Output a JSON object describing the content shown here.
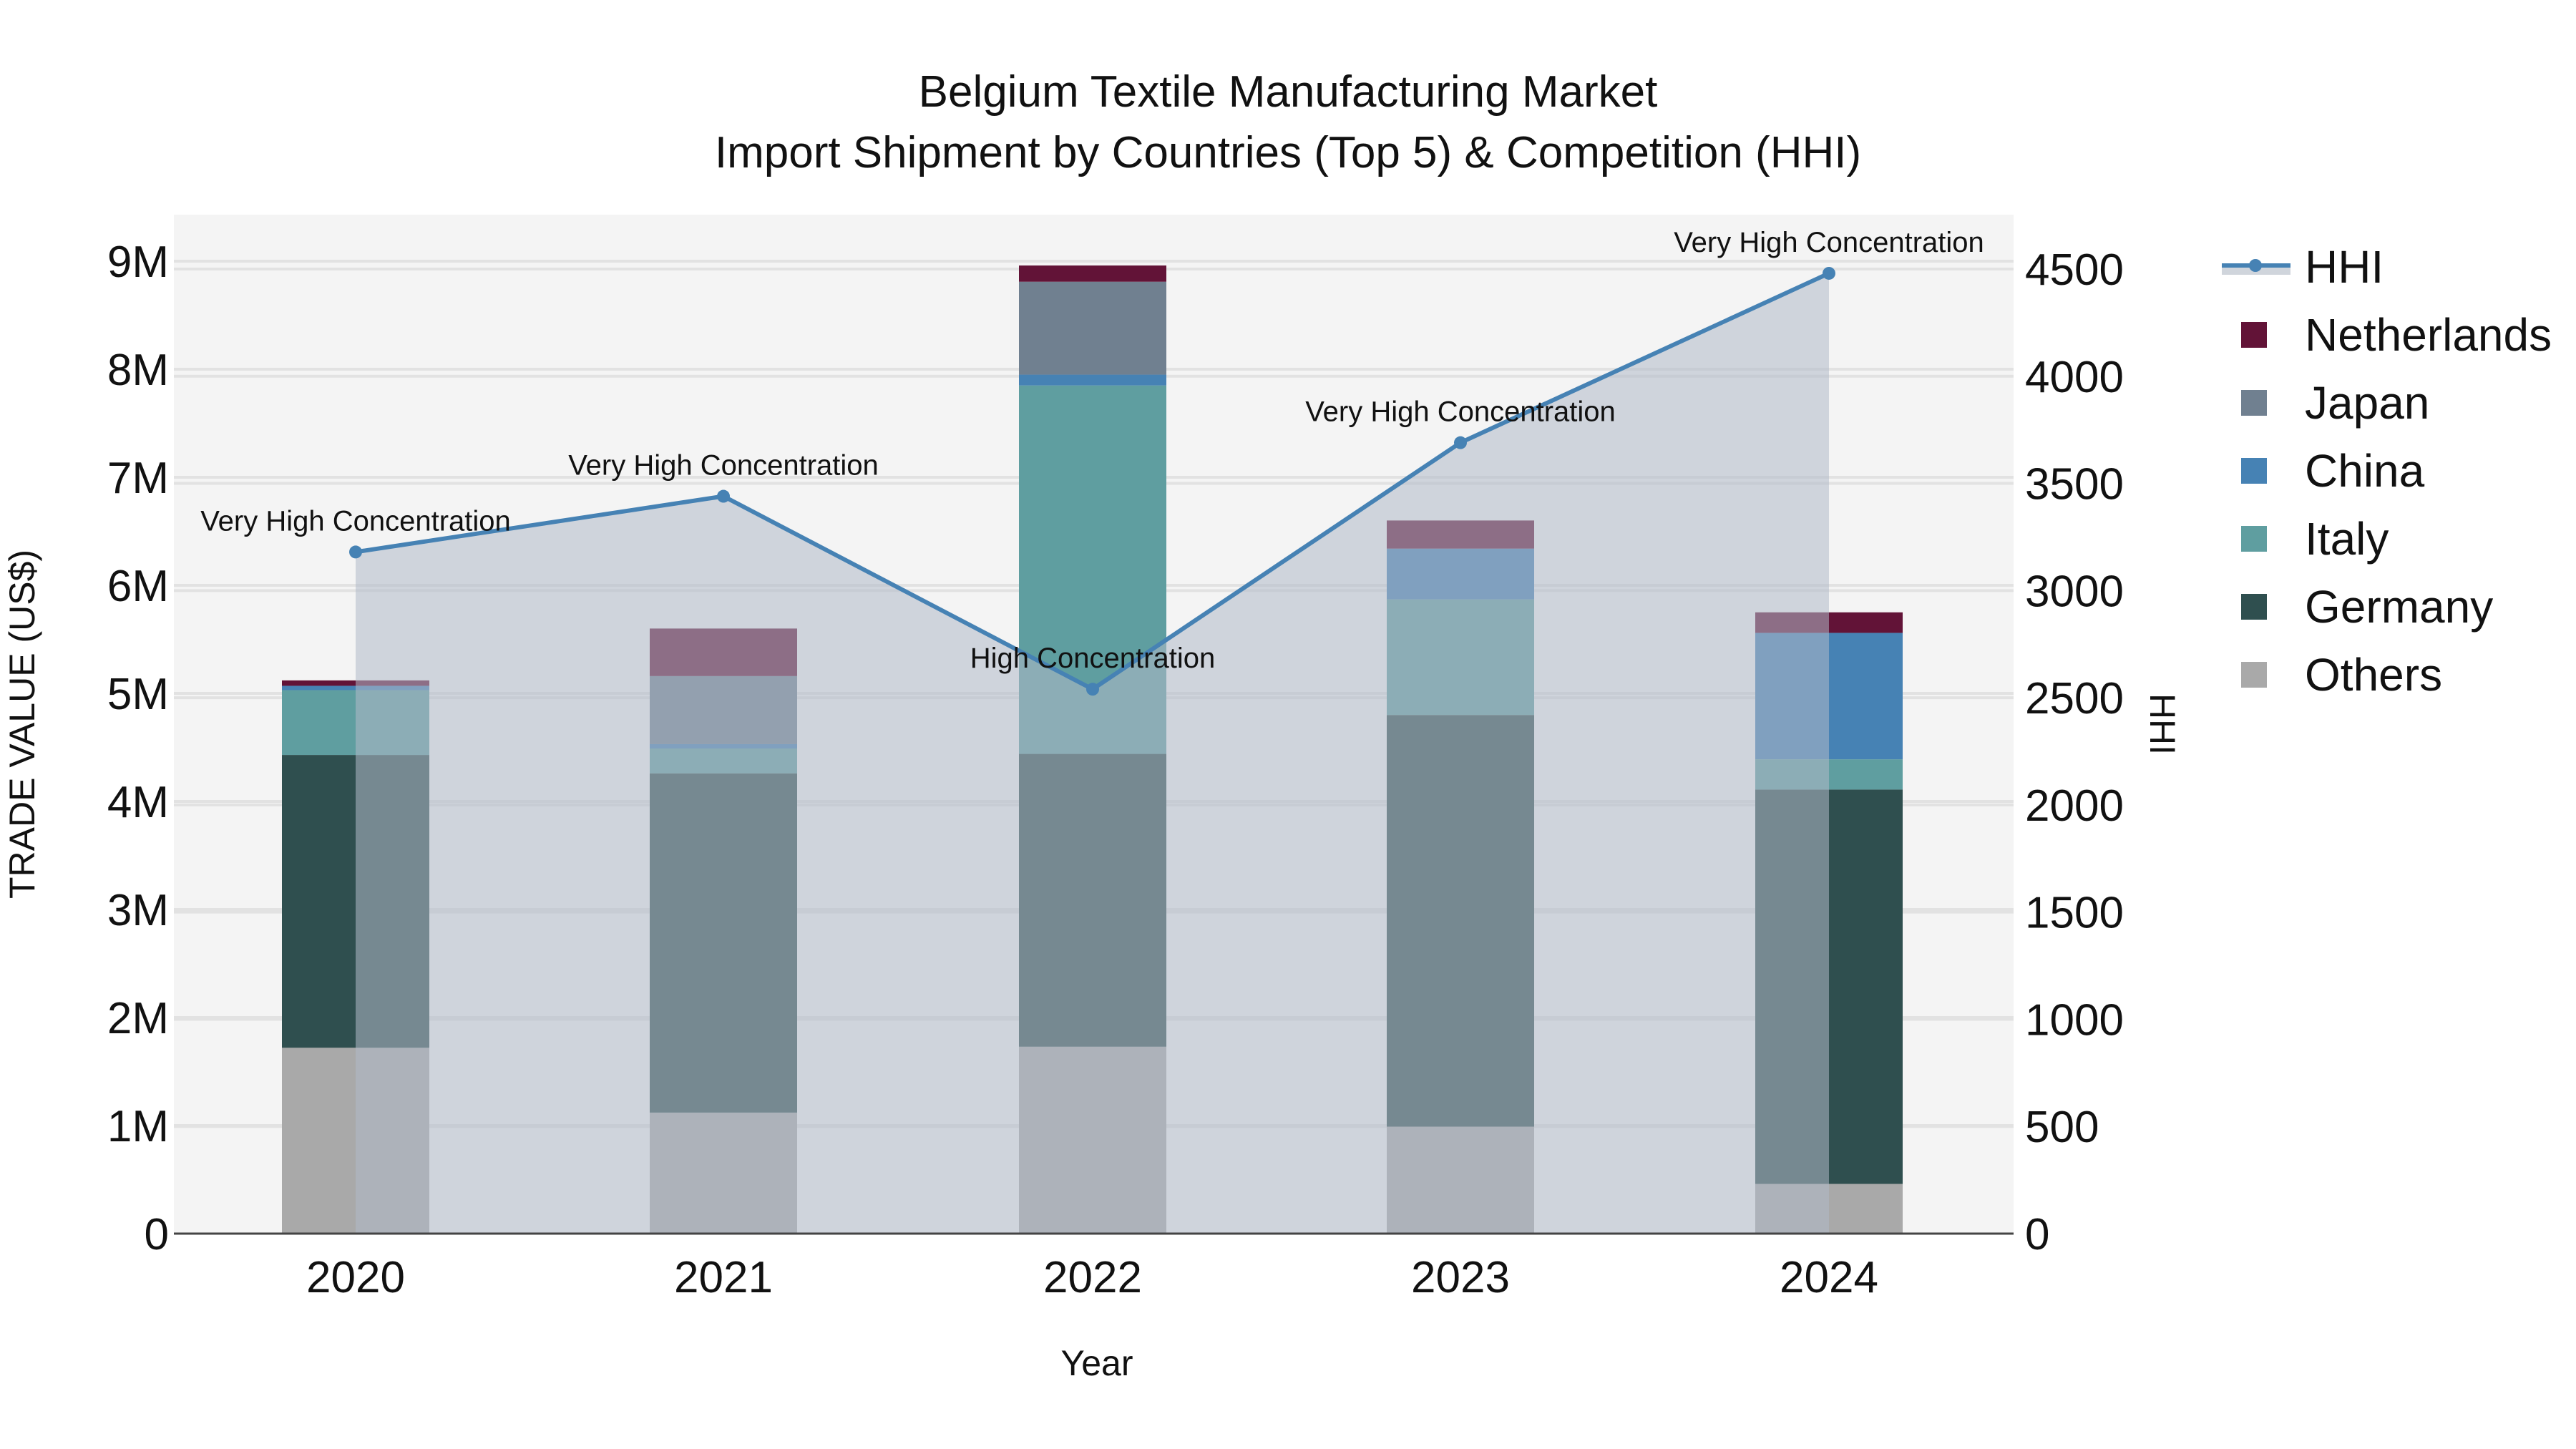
{
  "title": {
    "line1": "Belgium Textile Manufacturing Market",
    "line2": "Import Shipment by Countries (Top 5) & Competition (HHI)"
  },
  "axes": {
    "xlabel": "Year",
    "ylabel_left": "TRADE VALUE (US$)",
    "ylabel_right": "HHI",
    "left_ticks": [
      "0",
      "1M",
      "2M",
      "3M",
      "4M",
      "5M",
      "6M",
      "7M",
      "8M",
      "9M"
    ],
    "right_ticks": [
      "0",
      "500",
      "1000",
      "1500",
      "2000",
      "2500",
      "3000",
      "3500",
      "4000",
      "4500"
    ]
  },
  "legend": [
    {
      "label": "HHI",
      "type": "line",
      "color": "#4682b4"
    },
    {
      "label": "Netherlands",
      "type": "bar",
      "color": "#621337"
    },
    {
      "label": "Japan",
      "type": "bar",
      "color": "#708090"
    },
    {
      "label": "China",
      "type": "bar",
      "color": "#4682b4"
    },
    {
      "label": "Italy",
      "type": "bar",
      "color": "#5f9ea0"
    },
    {
      "label": "Germany",
      "type": "bar",
      "color": "#2f4f4f"
    },
    {
      "label": "Others",
      "type": "bar",
      "color": "#a9a9a9"
    }
  ],
  "chart_data": {
    "type": "bar",
    "stacked": true,
    "title": "Belgium Textile Manufacturing Market — Import Shipment by Countries (Top 5) & Competition (HHI)",
    "xlabel": "Year",
    "ylabel": "TRADE VALUE (US$)",
    "y2label": "HHI",
    "ylim": [
      0,
      9400000
    ],
    "y2lim": [
      0,
      4750
    ],
    "grid": true,
    "legend_position": "right",
    "categories": [
      "2020",
      "2021",
      "2022",
      "2023",
      "2024"
    ],
    "series": [
      {
        "name": "Others",
        "color": "#a9a9a9",
        "values": [
          1720000,
          1120000,
          1730000,
          990000,
          460000
        ]
      },
      {
        "name": "Germany",
        "color": "#2f4f4f",
        "values": [
          2710000,
          3140000,
          2710000,
          3810000,
          3650000
        ]
      },
      {
        "name": "Italy",
        "color": "#5f9ea0",
        "values": [
          600000,
          230000,
          3410000,
          1070000,
          280000
        ]
      },
      {
        "name": "China",
        "color": "#4682b4",
        "values": [
          40000,
          40000,
          100000,
          470000,
          1170000
        ]
      },
      {
        "name": "Japan",
        "color": "#708090",
        "values": [
          0,
          630000,
          860000,
          0,
          0
        ]
      },
      {
        "name": "Netherlands",
        "color": "#621337",
        "values": [
          50000,
          440000,
          150000,
          260000,
          190000
        ]
      }
    ],
    "line_series": {
      "name": "HHI",
      "axis": "right",
      "color": "#4682b4",
      "fill": "tozeroy",
      "values": [
        3180,
        3440,
        2540,
        3690,
        4480
      ],
      "annotations": [
        "Very High Concentration",
        "Very High Concentration",
        "High Concentration",
        "Very High Concentration",
        "Very High Concentration"
      ]
    }
  }
}
